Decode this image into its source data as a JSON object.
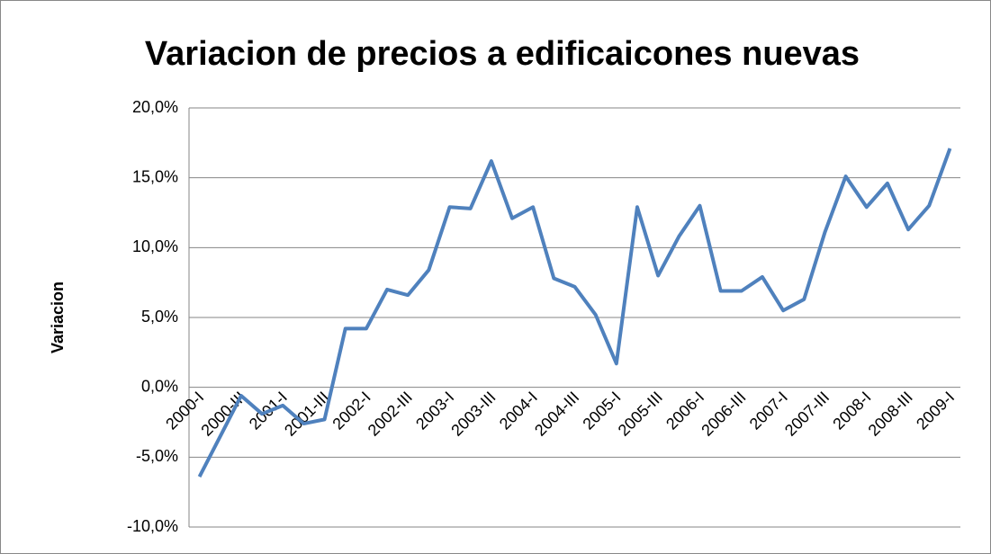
{
  "chart_data": {
    "type": "line",
    "title": "Variacion de precios a edificaicones nuevas",
    "y_label": "Variacion",
    "categories": [
      "2000-I",
      null,
      "2000-III",
      null,
      "2001-I",
      null,
      "2001-III",
      null,
      "2002-I",
      null,
      "2002-III",
      null,
      "2003-I",
      null,
      "2003-III",
      null,
      "2004-I",
      null,
      "2004-III",
      null,
      "2005-I",
      null,
      "2005-III",
      null,
      "2006-I",
      null,
      "2006-III",
      null,
      "2007-I",
      null,
      "2007-III",
      null,
      "2008-I",
      null,
      "2008-III",
      null,
      "2009-I"
    ],
    "series": [
      {
        "name": "Variacion",
        "color": "#4f81bd",
        "values": [
          -6.4,
          -3.5,
          -0.6,
          -1.9,
          -1.3,
          -2.6,
          -2.3,
          4.2,
          4.2,
          7.0,
          6.6,
          8.4,
          12.9,
          12.8,
          16.2,
          12.1,
          12.9,
          7.8,
          7.2,
          5.2,
          1.7,
          12.9,
          8.0,
          10.8,
          13.0,
          6.9,
          6.9,
          7.9,
          5.5,
          6.3,
          11.1,
          15.1,
          12.9,
          14.6,
          11.3,
          13.0,
          17.1
        ]
      }
    ],
    "ylim": [
      -10,
      20
    ],
    "yticks": [
      {
        "value": -10,
        "label": "-10,0%"
      },
      {
        "value": -5,
        "label": "-5,0%"
      },
      {
        "value": 0,
        "label": "0,0%"
      },
      {
        "value": 5,
        "label": "5,0%"
      },
      {
        "value": 10,
        "label": "10,0%"
      },
      {
        "value": 15,
        "label": "15,0%"
      },
      {
        "value": 20,
        "label": "20,0%"
      }
    ],
    "grid": true
  }
}
